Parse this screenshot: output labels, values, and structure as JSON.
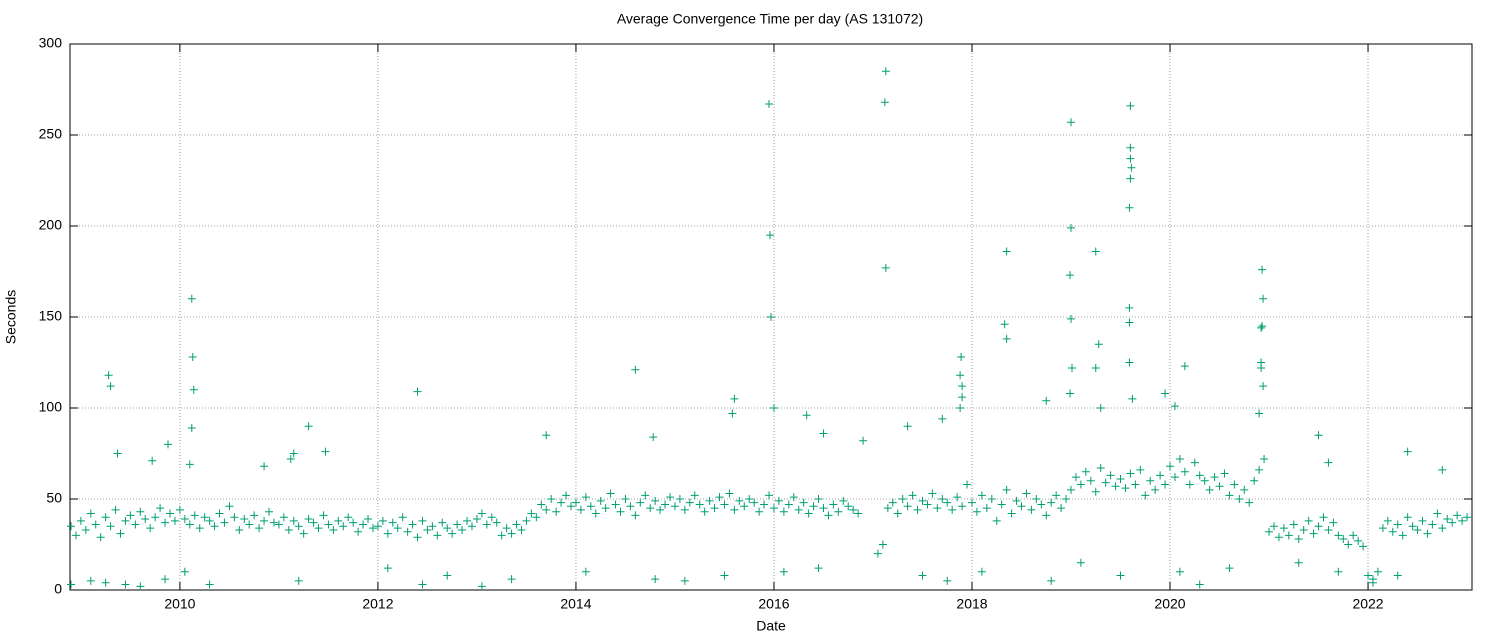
{
  "chart_data": {
    "type": "scatter",
    "title": "Average Convergence Time per day (AS 131072)",
    "x_label": "Date",
    "y_label": "Seconds",
    "color": "#009e73",
    "marker": "+",
    "grid": true,
    "xlim": [
      2008.89,
      2023.05
    ],
    "ylim": [
      0,
      300
    ],
    "xticks": [
      2010,
      2012,
      2014,
      2016,
      2018,
      2020,
      2022
    ],
    "yticks": [
      0,
      50,
      100,
      150,
      200,
      250,
      300
    ],
    "x": [
      2008.9,
      2008.95,
      2009,
      2009.05,
      2009.1,
      2009.15,
      2009.2,
      2009.25,
      2009.3,
      2009.35,
      2009.4,
      2009.45,
      2009.5,
      2009.55,
      2009.6,
      2009.65,
      2009.7,
      2009.75,
      2009.8,
      2009.85,
      2009.9,
      2009.95,
      2010,
      2010.05,
      2010.1,
      2010.15,
      2010.2,
      2010.25,
      2010.3,
      2010.35,
      2010.4,
      2010.45,
      2010.5,
      2010.55,
      2010.6,
      2010.65,
      2010.7,
      2010.75,
      2010.8,
      2010.85,
      2010.9,
      2010.95,
      2011,
      2011.05,
      2011.1,
      2011.15,
      2011.2,
      2011.25,
      2011.3,
      2011.35,
      2011.4,
      2011.45,
      2011.5,
      2011.55,
      2011.6,
      2011.65,
      2011.7,
      2011.75,
      2011.8,
      2011.85,
      2011.9,
      2011.95,
      2012,
      2012.05,
      2012.1,
      2012.15,
      2012.2,
      2012.25,
      2012.3,
      2012.35,
      2012.4,
      2012.45,
      2012.5,
      2012.55,
      2012.6,
      2012.65,
      2012.7,
      2012.75,
      2012.8,
      2012.85,
      2012.9,
      2012.95,
      2013,
      2013.05,
      2013.1,
      2013.15,
      2013.2,
      2013.25,
      2013.3,
      2013.35,
      2013.4,
      2013.45,
      2013.5,
      2013.55,
      2013.6,
      2013.65,
      2013.7,
      2013.75,
      2013.8,
      2013.85,
      2013.9,
      2013.95,
      2014,
      2014.05,
      2014.1,
      2014.15,
      2014.2,
      2014.25,
      2014.3,
      2014.35,
      2014.4,
      2014.45,
      2014.5,
      2014.55,
      2014.6,
      2014.65,
      2014.7,
      2014.75,
      2014.8,
      2014.85,
      2014.9,
      2014.95,
      2015,
      2015.05,
      2015.1,
      2015.15,
      2015.2,
      2015.25,
      2015.3,
      2015.35,
      2015.4,
      2015.45,
      2015.5,
      2015.55,
      2015.6,
      2015.65,
      2015.7,
      2015.75,
      2015.8,
      2015.85,
      2015.9,
      2015.95,
      2016,
      2016.05,
      2016.1,
      2016.15,
      2016.2,
      2016.25,
      2016.3,
      2016.35,
      2016.4,
      2016.45,
      2016.5,
      2016.55,
      2016.6,
      2016.65,
      2016.7,
      2016.75,
      2016.8,
      2016.85,
      2017.05,
      2017.1,
      2017.15,
      2017.2,
      2017.25,
      2017.3,
      2017.35,
      2017.4,
      2017.45,
      2017.5,
      2017.55,
      2017.6,
      2017.65,
      2017.7,
      2017.75,
      2017.8,
      2017.85,
      2017.9,
      2017.95,
      2018,
      2018.05,
      2018.1,
      2018.15,
      2018.2,
      2018.25,
      2018.3,
      2018.35,
      2018.4,
      2018.45,
      2018.5,
      2018.55,
      2018.6,
      2018.65,
      2018.7,
      2018.75,
      2018.8,
      2018.85,
      2018.9,
      2018.95,
      2019,
      2019.05,
      2019.1,
      2019.15,
      2019.2,
      2019.25,
      2019.3,
      2019.35,
      2019.4,
      2019.45,
      2019.5,
      2019.55,
      2019.6,
      2019.65,
      2019.7,
      2019.75,
      2019.8,
      2019.85,
      2019.9,
      2019.95,
      2020,
      2020.05,
      2020.1,
      2020.15,
      2020.2,
      2020.25,
      2020.3,
      2020.35,
      2020.4,
      2020.45,
      2020.5,
      2020.55,
      2020.6,
      2020.65,
      2020.7,
      2020.75,
      2020.8,
      2020.85,
      2020.9,
      2020.95,
      2021,
      2021.05,
      2021.1,
      2021.15,
      2021.2,
      2021.25,
      2021.3,
      2021.35,
      2021.4,
      2021.45,
      2021.5,
      2021.55,
      2021.6,
      2021.65,
      2021.7,
      2021.75,
      2021.8,
      2021.85,
      2021.9,
      2021.95,
      2022,
      2022.05,
      2022.1,
      2022.15,
      2022.2,
      2022.25,
      2022.3,
      2022.35,
      2022.4,
      2022.45,
      2022.5,
      2022.55,
      2022.6,
      2022.65,
      2022.7,
      2022.75,
      2022.8,
      2022.85,
      2022.9,
      2022.95,
      2023,
      2009.1,
      2009.25,
      2009.45,
      2009.6,
      2009.85,
      2010.05,
      2010.3,
      2011.2,
      2012.1,
      2012.45,
      2012.7,
      2013.05,
      2013.35,
      2014.1,
      2014.8,
      2015.1,
      2015.5,
      2016.1,
      2016.45,
      2017.5,
      2017.75,
      2018.1,
      2018.8,
      2019.1,
      2019.5,
      2020.1,
      2020.3,
      2020.6,
      2021.3,
      2021.7,
      2022.05,
      2022.3,
      2008.9,
      2009.28,
      2009.3,
      2009.37,
      2009.72,
      2009.88,
      2010.12,
      2010.13,
      2010.14,
      2010.12,
      2010.1,
      2010.85,
      2011.15,
      2011.12,
      2011.3,
      2011.47,
      2012.4,
      2013.7,
      2014.6,
      2014.78,
      2015.6,
      2015.58,
      2015.95,
      2015.96,
      2015.97,
      2016,
      2016.33,
      2016.5,
      2016.9,
      2017.13,
      2017.12,
      2017.13,
      2017.35,
      2017.7,
      2017.88,
      2017.89,
      2017.88,
      2017.9,
      2017.9,
      2018.35,
      2018.33,
      2018.35,
      2018.75,
      2019,
      2019,
      2018.99,
      2019,
      2019.01,
      2018.99,
      2019.25,
      2019.28,
      2019.25,
      2019.3,
      2019.6,
      2019.6,
      2019.6,
      2019.61,
      2019.6,
      2019.59,
      2019.59,
      2019.59,
      2019.59,
      2019.62,
      2019.95,
      2020.15,
      2020.05,
      2020.93,
      2020.94,
      2020.93,
      2020.92,
      2020.92,
      2020.92,
      2020.94,
      2020.9,
      2021.5,
      2021.6,
      2022.4,
      2022.75
    ],
    "values": [
      35,
      30,
      38,
      33,
      42,
      36,
      29,
      40,
      35,
      44,
      31,
      38,
      41,
      36,
      43,
      39,
      34,
      40,
      45,
      37,
      42,
      38,
      44,
      39,
      36,
      41,
      34,
      40,
      38,
      35,
      42,
      37,
      46,
      40,
      33,
      39,
      36,
      41,
      34,
      38,
      43,
      37,
      36,
      40,
      33,
      38,
      35,
      31,
      39,
      37,
      34,
      41,
      36,
      33,
      38,
      35,
      40,
      37,
      32,
      36,
      39,
      34,
      35,
      38,
      31,
      37,
      34,
      40,
      32,
      36,
      29,
      38,
      33,
      35,
      30,
      37,
      34,
      31,
      36,
      33,
      38,
      35,
      39,
      42,
      36,
      40,
      37,
      30,
      34,
      31,
      36,
      33,
      38,
      42,
      40,
      47,
      44,
      50,
      43,
      48,
      52,
      46,
      48,
      44,
      51,
      46,
      42,
      49,
      45,
      53,
      47,
      43,
      50,
      46,
      41,
      48,
      52,
      45,
      49,
      44,
      47,
      51,
      46,
      50,
      44,
      48,
      52,
      47,
      43,
      49,
      45,
      51,
      47,
      53,
      44,
      49,
      46,
      50,
      48,
      43,
      47,
      52,
      45,
      49,
      43,
      47,
      51,
      44,
      48,
      42,
      46,
      50,
      45,
      41,
      47,
      43,
      49,
      46,
      44,
      42,
      20,
      25,
      45,
      48,
      42,
      50,
      46,
      52,
      44,
      49,
      47,
      53,
      45,
      50,
      48,
      44,
      51,
      46,
      58,
      48,
      43,
      52,
      45,
      50,
      38,
      47,
      55,
      42,
      49,
      46,
      53,
      44,
      50,
      47,
      41,
      48,
      52,
      45,
      50,
      55,
      62,
      58,
      65,
      60,
      54,
      67,
      59,
      63,
      57,
      61,
      56,
      64,
      58,
      66,
      52,
      60,
      55,
      63,
      58,
      68,
      62,
      72,
      65,
      58,
      70,
      63,
      60,
      55,
      62,
      57,
      64,
      52,
      58,
      50,
      55,
      48,
      60,
      66,
      72,
      32,
      35,
      29,
      34,
      30,
      36,
      28,
      33,
      38,
      31,
      35,
      40,
      33,
      37,
      30,
      28,
      25,
      30,
      27,
      24,
      8,
      6,
      10,
      34,
      38,
      32,
      36,
      30,
      40,
      35,
      33,
      38,
      31,
      36,
      42,
      34,
      39,
      37,
      41,
      38,
      40,
      5,
      4,
      3,
      2,
      6,
      10,
      3,
      5,
      12,
      3,
      8,
      2,
      6,
      10,
      6,
      5,
      8,
      10,
      12,
      8,
      5,
      10,
      5,
      15,
      8,
      10,
      3,
      12,
      15,
      10,
      4,
      8,
      3,
      118,
      112,
      75,
      71,
      80,
      160,
      128,
      110,
      89,
      69,
      68,
      75,
      72,
      90,
      76,
      109,
      85,
      121,
      84,
      105,
      97,
      267,
      195,
      150,
      100,
      96,
      86,
      82,
      285,
      268,
      177,
      90,
      94,
      100,
      128,
      118,
      112,
      106,
      186,
      146,
      138,
      104,
      257,
      199,
      173,
      149,
      122,
      108,
      186,
      135,
      122,
      100,
      266,
      243,
      237,
      232,
      226,
      210,
      155,
      147,
      125,
      105,
      108,
      123,
      101,
      176,
      160,
      145,
      144,
      125,
      122,
      112,
      97,
      85,
      70,
      76,
      66
    ]
  }
}
